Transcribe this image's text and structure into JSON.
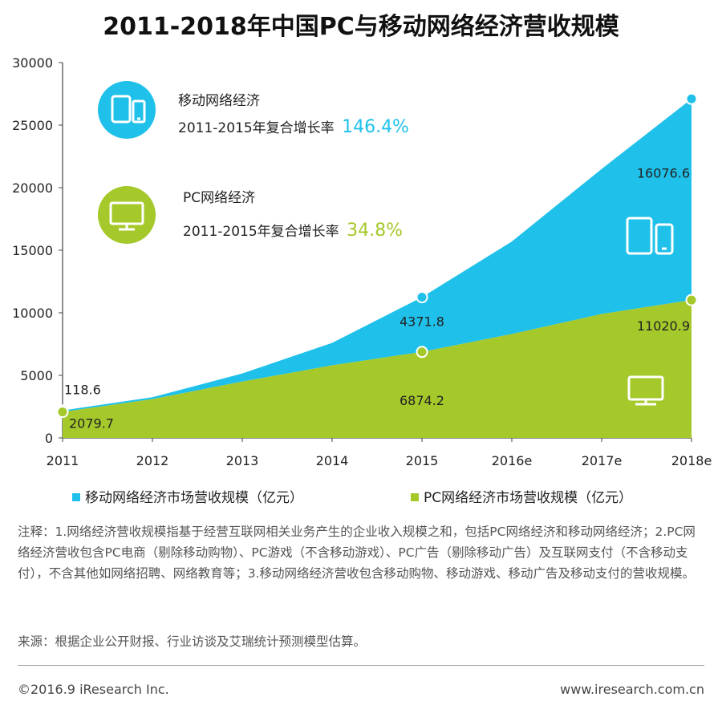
{
  "chart_data": {
    "type": "area",
    "title": "2011-2018年中国PC与移动网络经济营收规模",
    "categories": [
      "2011",
      "2012",
      "2013",
      "2014",
      "2015",
      "2016e",
      "2017e",
      "2018e"
    ],
    "ylim": [
      0,
      30000
    ],
    "yticks": [
      "30000",
      "25000",
      "20000",
      "15000",
      "10000",
      "5000",
      "0"
    ],
    "stacked": true,
    "series": [
      {
        "name": "PC网络经济市场营收规模（亿元）",
        "color": "#a5c82a",
        "values": [
          2079.7,
          3100,
          4500,
          5800,
          6874.2,
          8300,
          9900,
          11020.9
        ]
      },
      {
        "name": "移动网络经济市场营收规模（亿元）",
        "color": "#1fc1ea",
        "values": [
          118.6,
          150,
          650,
          1800,
          4371.8,
          7400,
          11600,
          16076.6
        ]
      }
    ],
    "point_labels": [
      {
        "series": "mobile",
        "category": "2011",
        "text": "118.6"
      },
      {
        "series": "pc",
        "category": "2011",
        "text": "2079.7"
      },
      {
        "series": "mobile",
        "category": "2015",
        "text": "4371.8"
      },
      {
        "series": "pc",
        "category": "2015",
        "text": "6874.2"
      },
      {
        "series": "mobile",
        "category": "2018e",
        "text": "16076.6"
      },
      {
        "series": "pc",
        "category": "2018e",
        "text": "11020.9"
      }
    ],
    "annotations": {
      "mobile": {
        "name": "移动网络经济",
        "cagr_label": "2011-2015年复合增长率",
        "cagr_value": "146.4%"
      },
      "pc": {
        "name": "PC网络经济",
        "cagr_label": "2011-2015年复合增长率",
        "cagr_value": "34.8%"
      }
    },
    "legend": [
      "移动网络经济市场营收规模（亿元）",
      "PC网络经济市场营收规模（亿元）"
    ]
  },
  "note": "注释：1.网络经济营收规模指基于经营互联网相关业务产生的企业收入规模之和，包括PC网络经济和移动网络经济；2.PC网络经济营收包含PC电商（剔除移动购物）、PC游戏（不含移动游戏）、PC广告（剔除移动广告）及互联网支付（不含移动支付），不含其他如网络招聘、网络教育等；3.移动网络经济营收包含移动购物、移动游戏、移动广告及移动支付的营收规模。",
  "source": "来源：根据企业公开财报、行业访谈及艾瑞统计预测模型估算。",
  "footer": {
    "copyright": "©2016.9 iResearch Inc.",
    "website": "www.iresearch.com.cn"
  },
  "icons": {
    "mobile": "tablet-phone-icon",
    "pc": "monitor-icon"
  }
}
